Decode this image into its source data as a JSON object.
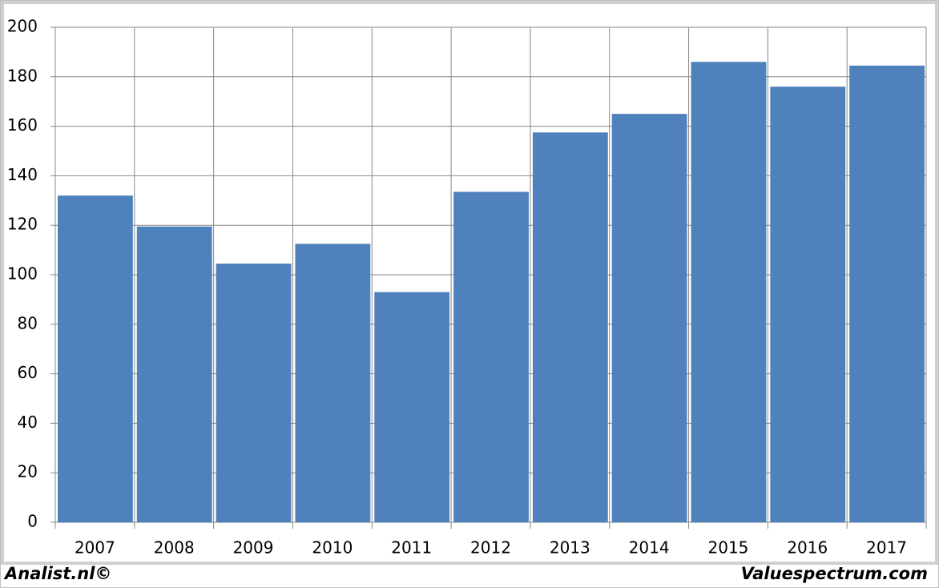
{
  "chart_data": {
    "type": "bar",
    "categories": [
      "2007",
      "2008",
      "2009",
      "2010",
      "2011",
      "2012",
      "2013",
      "2014",
      "2015",
      "2016",
      "2017"
    ],
    "values": [
      132,
      119.5,
      104.5,
      112.5,
      93,
      133.5,
      157.5,
      165,
      186,
      176,
      184.5
    ],
    "color": "#4f81bd",
    "ylim": [
      0,
      200
    ],
    "yticks": [
      0,
      20,
      40,
      60,
      80,
      100,
      120,
      140,
      160,
      180,
      200
    ],
    "grid": true,
    "source_left": "Analist.nl©",
    "source_right": "Valuespectrum.com"
  }
}
